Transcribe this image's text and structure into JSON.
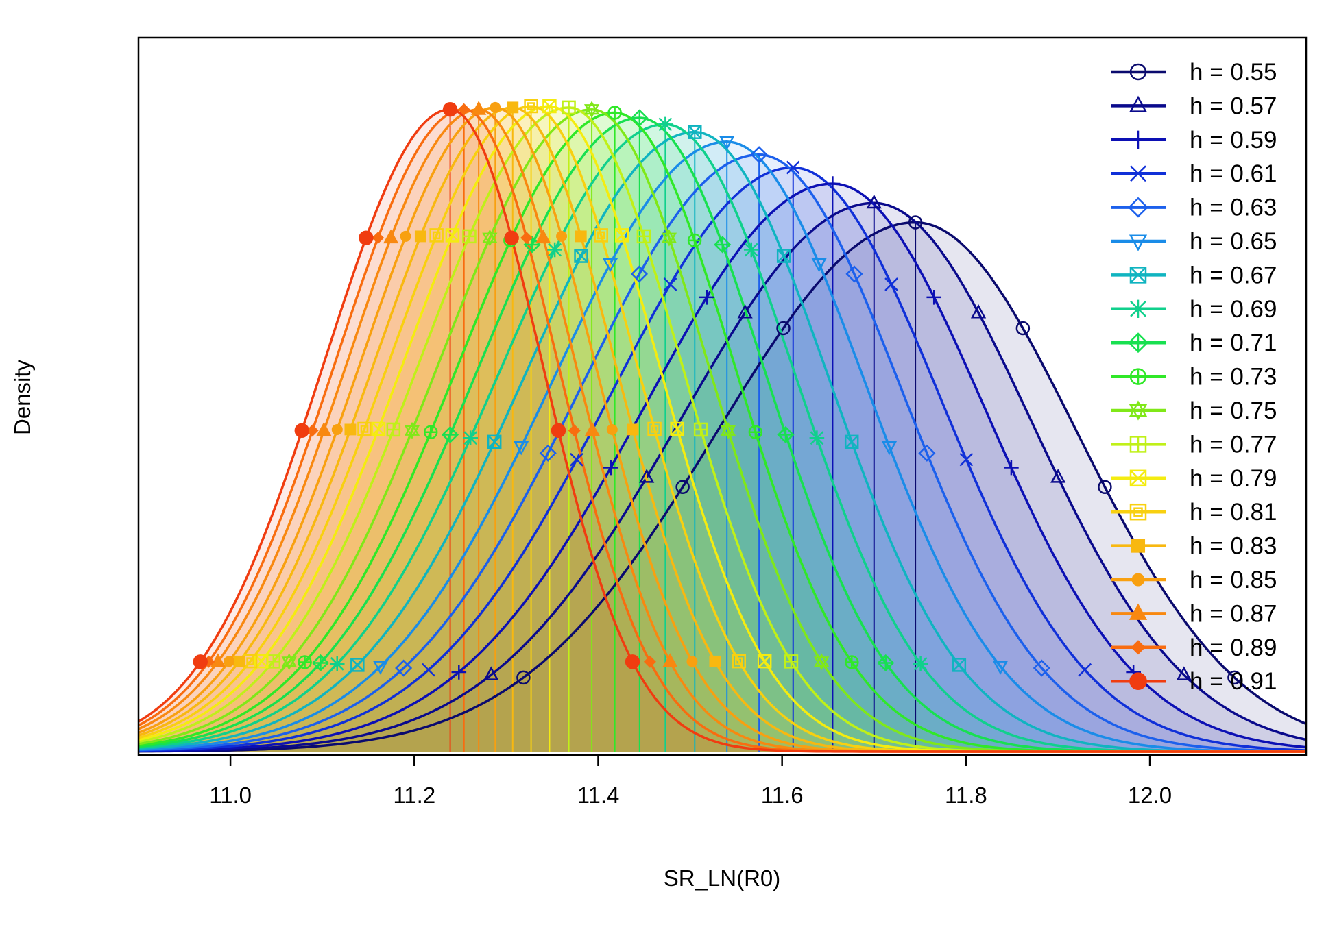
{
  "chart_data": {
    "type": "line",
    "title": "",
    "xlabel": "SR_LN(R0)",
    "ylabel": "Density",
    "xlim": [
      10.9,
      12.17
    ],
    "x_ticks": [
      "11.0",
      "11.2",
      "11.4",
      "11.6",
      "11.8",
      "12.0"
    ],
    "y_ticks": [],
    "grid": false,
    "legend_position": "top-right",
    "series": [
      {
        "name": "h = 0.55",
        "color": "#0a0a6e",
        "marker": "circle",
        "mode": 11.745,
        "peak": 0.82,
        "sd_left": 0.215,
        "sd_right": 0.175
      },
      {
        "name": "h = 0.57",
        "color": "#0a0a8c",
        "marker": "triangle",
        "mode": 11.7,
        "peak": 0.85,
        "sd_left": 0.21,
        "sd_right": 0.17
      },
      {
        "name": "h = 0.59",
        "color": "#0c10b4",
        "marker": "plus",
        "mode": 11.655,
        "peak": 0.88,
        "sd_left": 0.205,
        "sd_right": 0.165
      },
      {
        "name": "h = 0.61",
        "color": "#1030d8",
        "marker": "cross",
        "mode": 11.612,
        "peak": 0.905,
        "sd_left": 0.2,
        "sd_right": 0.16
      },
      {
        "name": "h = 0.63",
        "color": "#1c60ec",
        "marker": "diamond",
        "mode": 11.575,
        "peak": 0.925,
        "sd_left": 0.195,
        "sd_right": 0.155
      },
      {
        "name": "h = 0.65",
        "color": "#1a8ce8",
        "marker": "triangle-down",
        "mode": 11.54,
        "peak": 0.945,
        "sd_left": 0.19,
        "sd_right": 0.15
      },
      {
        "name": "h = 0.67",
        "color": "#10b4c0",
        "marker": "square-cross",
        "mode": 11.505,
        "peak": 0.96,
        "sd_left": 0.185,
        "sd_right": 0.145
      },
      {
        "name": "h = 0.69",
        "color": "#10d08c",
        "marker": "asterisk",
        "mode": 11.473,
        "peak": 0.972,
        "sd_left": 0.18,
        "sd_right": 0.14
      },
      {
        "name": "h = 0.71",
        "color": "#18e050",
        "marker": "diamond-plus",
        "mode": 11.445,
        "peak": 0.982,
        "sd_left": 0.175,
        "sd_right": 0.135
      },
      {
        "name": "h = 0.73",
        "color": "#30e828",
        "marker": "circle-plus",
        "mode": 11.418,
        "peak": 0.99,
        "sd_left": 0.17,
        "sd_right": 0.13
      },
      {
        "name": "h = 0.75",
        "color": "#80e818",
        "marker": "star-david",
        "mode": 11.393,
        "peak": 0.995,
        "sd_left": 0.166,
        "sd_right": 0.126
      },
      {
        "name": "h = 0.77",
        "color": "#c0f018",
        "marker": "square-plus",
        "mode": 11.368,
        "peak": 0.998,
        "sd_left": 0.162,
        "sd_right": 0.122
      },
      {
        "name": "h = 0.79",
        "color": "#f4ec10",
        "marker": "square-x",
        "mode": 11.347,
        "peak": 1.0,
        "sd_left": 0.158,
        "sd_right": 0.118
      },
      {
        "name": "h = 0.81",
        "color": "#f8d010",
        "marker": "square-open",
        "mode": 11.327,
        "peak": 1.0,
        "sd_left": 0.154,
        "sd_right": 0.114
      },
      {
        "name": "h = 0.83",
        "color": "#f8b810",
        "marker": "square",
        "mode": 11.307,
        "peak": 0.998,
        "sd_left": 0.15,
        "sd_right": 0.111
      },
      {
        "name": "h = 0.85",
        "color": "#f8a010",
        "marker": "circle-filled",
        "mode": 11.288,
        "peak": 0.998,
        "sd_left": 0.146,
        "sd_right": 0.108
      },
      {
        "name": "h = 0.87",
        "color": "#f88810",
        "marker": "triangle-filled",
        "mode": 11.27,
        "peak": 0.995,
        "sd_left": 0.143,
        "sd_right": 0.105
      },
      {
        "name": "h = 0.89",
        "color": "#f86c10",
        "marker": "diamond-filled",
        "mode": 11.254,
        "peak": 0.995,
        "sd_left": 0.14,
        "sd_right": 0.102
      },
      {
        "name": "h = 0.91",
        "color": "#f03c10",
        "marker": "big-circle",
        "mode": 11.239,
        "peak": 0.995,
        "sd_left": 0.137,
        "sd_right": 0.1
      }
    ]
  }
}
